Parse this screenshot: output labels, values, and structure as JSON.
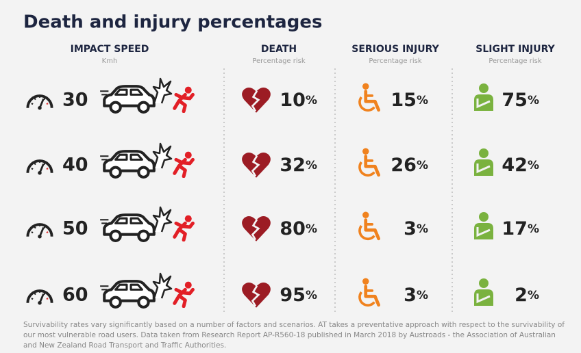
{
  "title": "Death and injury percentages",
  "columns": [
    {
      "heading": "IMPACT SPEED",
      "subheading": "Kmh"
    },
    {
      "heading": "DEATH",
      "subheading": "Percentage risk"
    },
    {
      "heading": "SERIOUS INJURY",
      "subheading": "Percentage risk"
    },
    {
      "heading": "SLIGHT INJURY",
      "subheading": "Percentage risk"
    }
  ],
  "unit": "%",
  "rows": [
    {
      "speed": 30,
      "death": 10,
      "serious_injury": 15,
      "slight_injury": 75
    },
    {
      "speed": 40,
      "death": 32,
      "serious_injury": 26,
      "slight_injury": 42
    },
    {
      "speed": 50,
      "death": 80,
      "serious_injury": 3,
      "slight_injury": 17
    },
    {
      "speed": 60,
      "death": 95,
      "serious_injury": 3,
      "slight_injury": 2
    }
  ],
  "footnote": "Survivability rates vary significantly based on a number of factors and scenarios. AT takes a preventative approach with respect to the survivability of our most vulnerable road users. Data taken from Research Report AP-R560-18 published in March 2018 by Austroads - the Association of Australian and New Zealand Road Transport and Traffic Authorities."
}
